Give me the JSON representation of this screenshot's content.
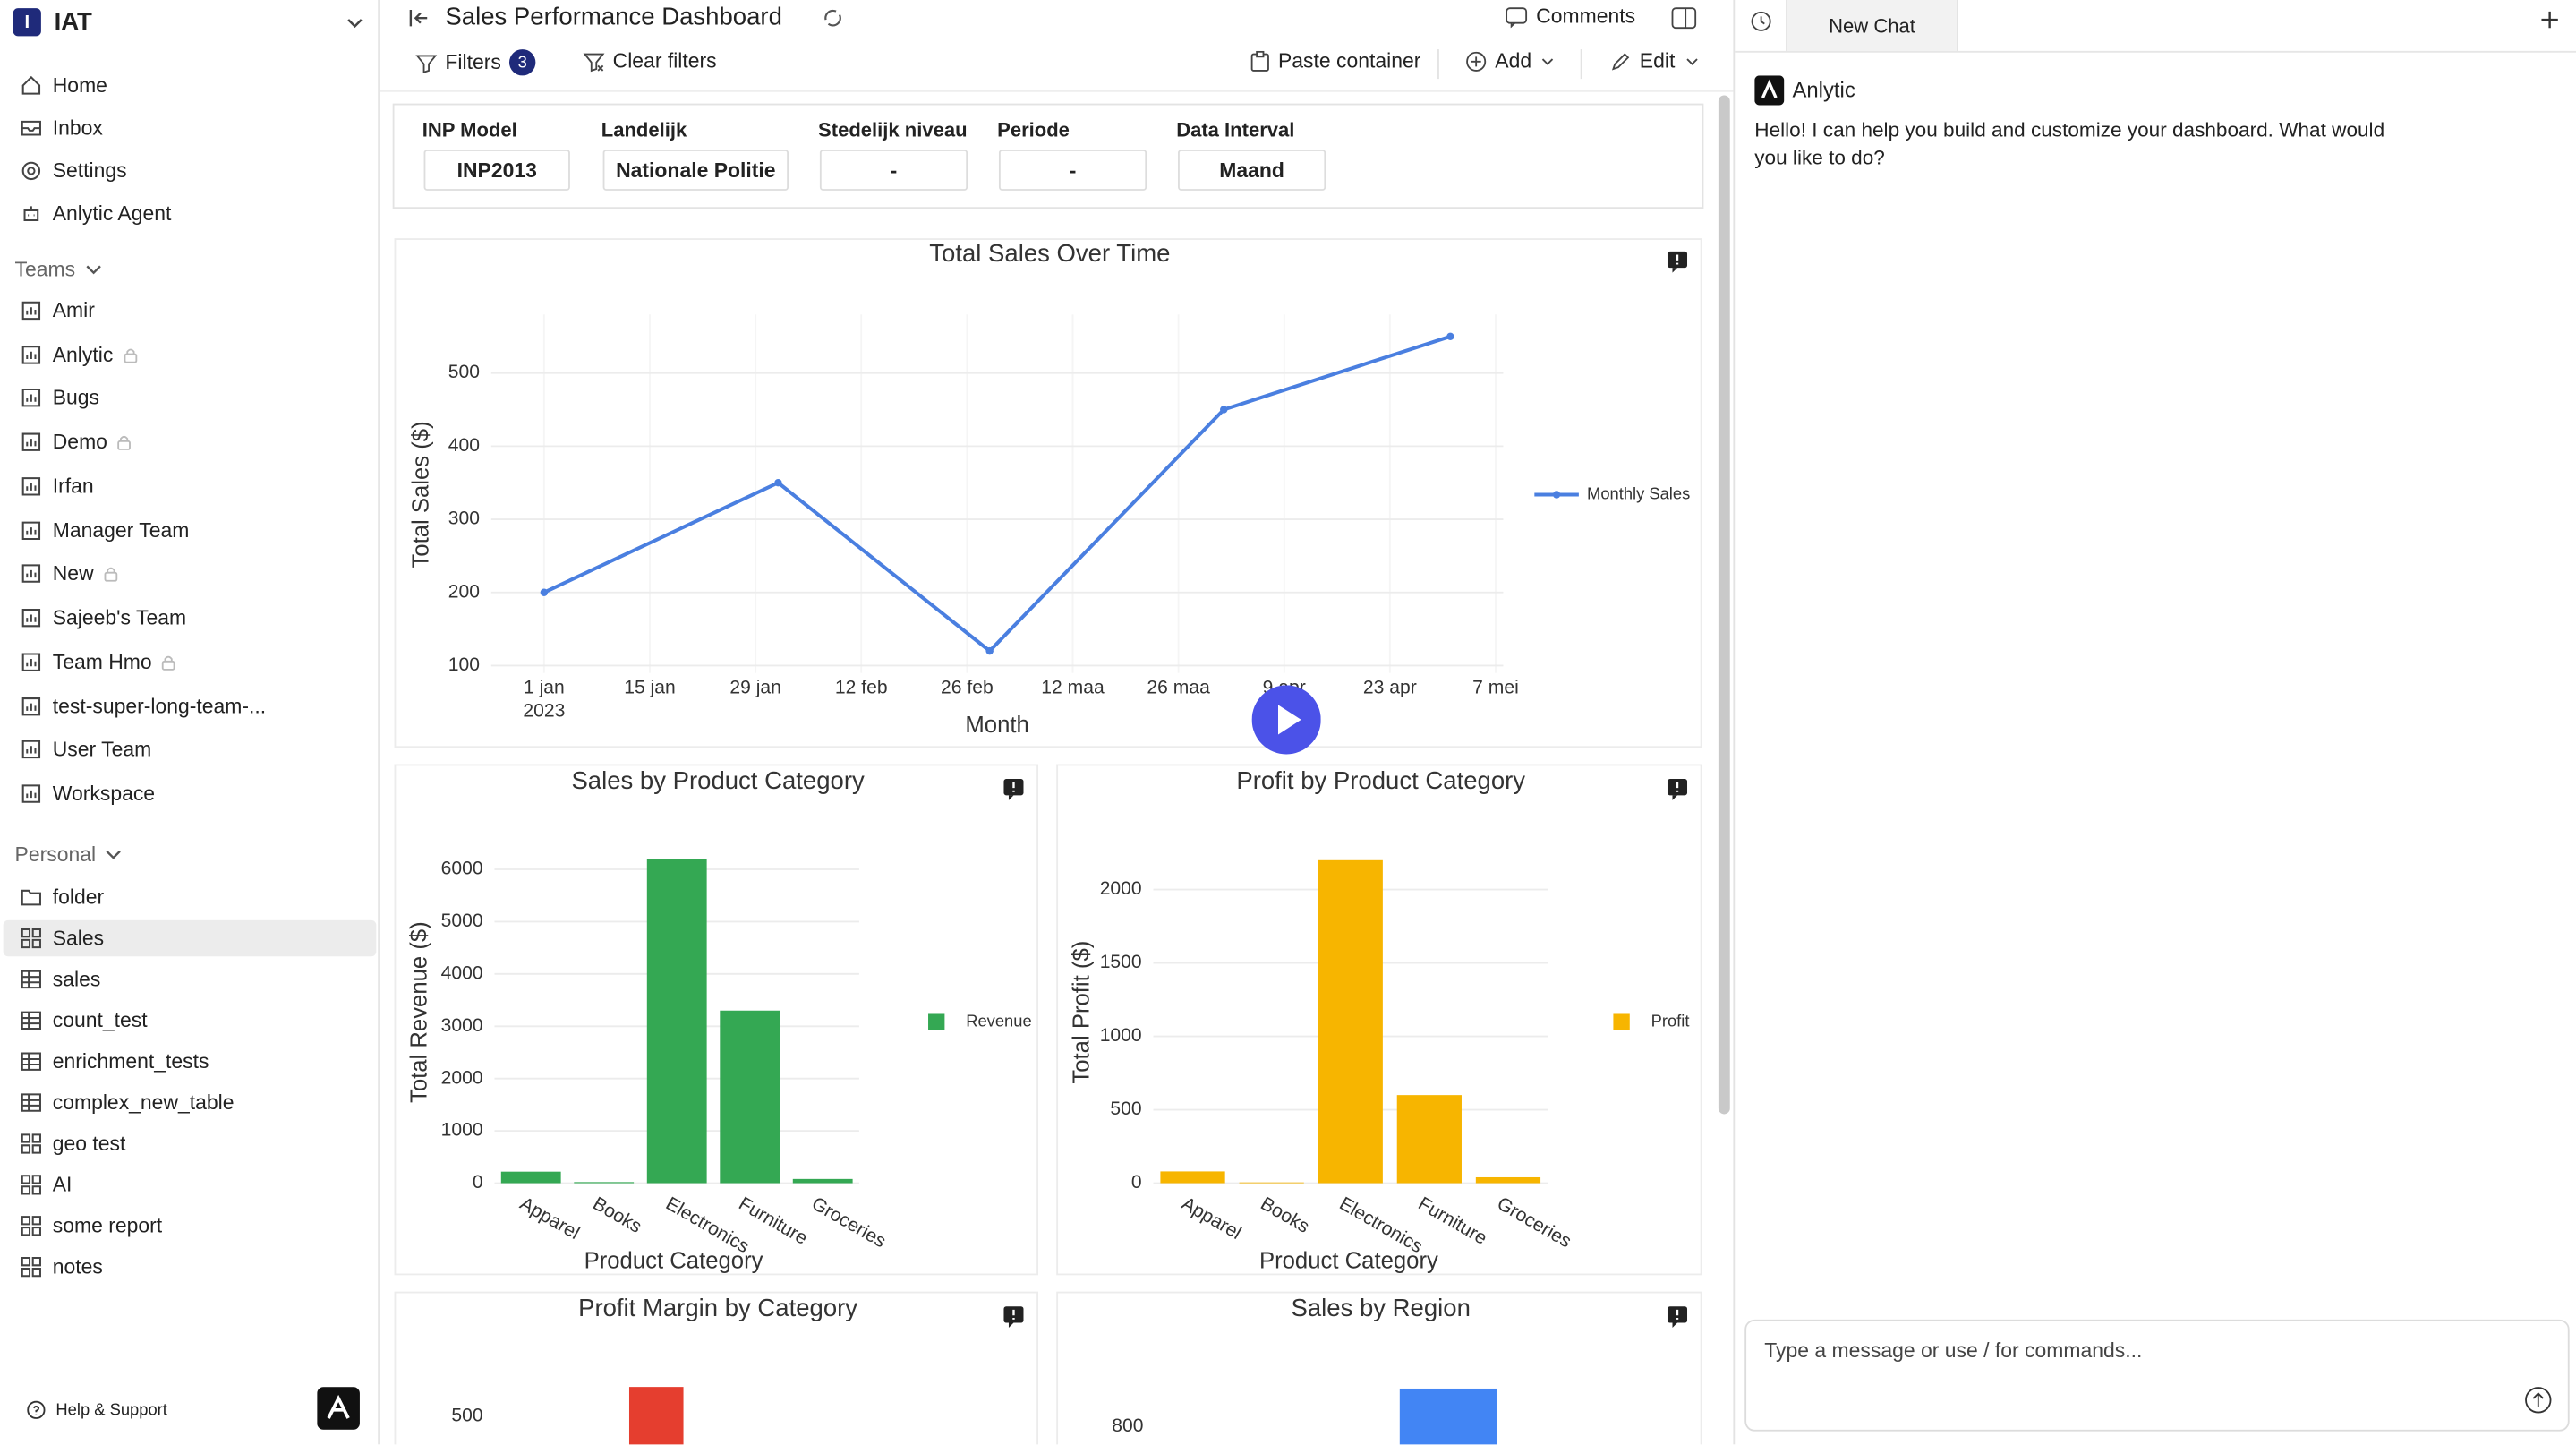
{
  "sidebar": {
    "badge": "I",
    "workspace": "IAT",
    "nav": [
      "Home",
      "Inbox",
      "Settings",
      "Anlytic Agent"
    ],
    "teams_label": "Teams",
    "teams": [
      {
        "name": "Amir",
        "locked": false
      },
      {
        "name": "Anlytic",
        "locked": true
      },
      {
        "name": "Bugs",
        "locked": false
      },
      {
        "name": "Demo",
        "locked": true
      },
      {
        "name": "Irfan",
        "locked": false
      },
      {
        "name": "Manager Team",
        "locked": false
      },
      {
        "name": "New",
        "locked": true
      },
      {
        "name": "Sajeeb's Team",
        "locked": false
      },
      {
        "name": "Team Hmo",
        "locked": true
      },
      {
        "name": "test-super-long-team-...",
        "locked": false
      },
      {
        "name": "User Team",
        "locked": false
      },
      {
        "name": "Workspace",
        "locked": false
      }
    ],
    "personal_label": "Personal",
    "personal": [
      {
        "name": "folder",
        "icon": "folder",
        "selected": false
      },
      {
        "name": "Sales",
        "icon": "grid",
        "selected": true
      },
      {
        "name": "sales",
        "icon": "table",
        "selected": false
      },
      {
        "name": "count_test",
        "icon": "table",
        "selected": false
      },
      {
        "name": "enrichment_tests",
        "icon": "table",
        "selected": false
      },
      {
        "name": "complex_new_table",
        "icon": "table",
        "selected": false
      },
      {
        "name": "geo test",
        "icon": "grid",
        "selected": false
      },
      {
        "name": "AI",
        "icon": "grid",
        "selected": false
      },
      {
        "name": "some report",
        "icon": "grid",
        "selected": false
      },
      {
        "name": "notes",
        "icon": "grid",
        "selected": false
      }
    ],
    "help": "Help & Support"
  },
  "header": {
    "title": "Sales Performance Dashboard",
    "comments": "Comments"
  },
  "toolbar": {
    "filters": "Filters",
    "filter_count": 3,
    "clear": "Clear filters",
    "paste": "Paste container",
    "add": "Add",
    "edit": "Edit"
  },
  "filters": [
    {
      "label": "INP Model",
      "value": "INP2013"
    },
    {
      "label": "Landelijk",
      "value": "Nationale Politie"
    },
    {
      "label": "Stedelijk niveau",
      "value": "-"
    },
    {
      "label": "Periode",
      "value": "-"
    },
    {
      "label": "Data Interval",
      "value": "Maand"
    }
  ],
  "charts": [
    {
      "type": "line",
      "title": "Total Sales Over Time",
      "x_label": "Month",
      "y_label": "Total Sales ($)",
      "x": [
        "2023-01-01",
        "2023-02-01",
        "2023-03-01",
        "2023-04-01",
        "2023-05-01"
      ],
      "series": [
        {
          "name": "Monthly Sales",
          "color": "#4a7fe0",
          "values": [
            200,
            350,
            120,
            450,
            550
          ]
        }
      ],
      "xlim": [
        "2022-12-25",
        "2023-05-08"
      ],
      "xticks": [
        {
          "value": "2023-01-01",
          "label": "1 jan\n2023"
        },
        {
          "value": "2023-01-15",
          "label": "15 jan"
        },
        {
          "value": "2023-01-29",
          "label": "29 jan"
        },
        {
          "value": "2023-02-12",
          "label": "12 feb"
        },
        {
          "value": "2023-02-26",
          "label": "26 feb"
        },
        {
          "value": "2023-03-12",
          "label": "12 maa"
        },
        {
          "value": "2023-03-26",
          "label": "26 maa"
        },
        {
          "value": "2023-04-09",
          "label": "9 apr"
        },
        {
          "value": "2023-04-23",
          "label": "23 apr"
        },
        {
          "value": "2023-05-07",
          "label": "7 mei"
        }
      ],
      "ylim": [
        90,
        580
      ],
      "yticks": [
        100,
        200,
        300,
        400,
        500
      ],
      "grid": true,
      "legend": "right"
    },
    {
      "type": "bar",
      "title": "Sales by Product Category",
      "x_label": "Product Category",
      "y_label": "Total Revenue ($)",
      "categories": [
        "Apparel",
        "Books",
        "Electronics",
        "Furniture",
        "Groceries"
      ],
      "series": [
        {
          "name": "Revenue",
          "color": "#34a853",
          "values": [
            220,
            20,
            6200,
            3300,
            80
          ]
        }
      ],
      "ylim": [
        0,
        6400
      ],
      "yticks": [
        0,
        1000,
        2000,
        3000,
        4000,
        5000,
        6000
      ],
      "grid": true,
      "legend": "right"
    },
    {
      "type": "bar",
      "title": "Profit by Product Category",
      "x_label": "Product Category",
      "y_label": "Total Profit ($)",
      "categories": [
        "Apparel",
        "Books",
        "Electronics",
        "Furniture",
        "Groceries"
      ],
      "series": [
        {
          "name": "Profit",
          "color": "#f7b500",
          "values": [
            80,
            5,
            2200,
            600,
            40
          ]
        }
      ],
      "ylim": [
        0,
        2250
      ],
      "yticks": [
        0,
        500,
        1000,
        1500,
        2000
      ],
      "grid": true,
      "legend": "right"
    },
    {
      "type": "bar",
      "title": "Profit Margin by Category",
      "yticks": [
        500
      ],
      "color": "#e53e2f"
    },
    {
      "type": "bar",
      "title": "Sales by Region",
      "yticks": [
        800
      ],
      "color": "#4285f4"
    }
  ],
  "chat": {
    "tab": "New Chat",
    "sender": "Anlytic",
    "message": "Hello! I can help you build and customize your dashboard. What would you like to do?",
    "placeholder": "Type a message or use / for commands..."
  }
}
